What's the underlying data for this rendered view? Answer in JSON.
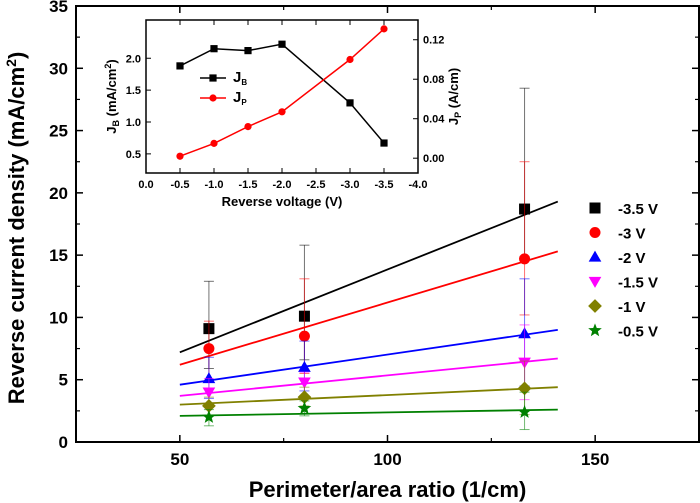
{
  "chart_data": [
    {
      "type": "scatter",
      "xlabel": "Perimeter/area ratio (1/cm)",
      "ylabel": "Reverse current density (mA/cm",
      "ylabel_sup": "2",
      "ylabel_close": ")",
      "xlim": [
        25,
        175
      ],
      "ylim": [
        0,
        35
      ],
      "xticks": [
        "50",
        "100",
        "150"
      ],
      "xtick_values": [
        50,
        100,
        150
      ],
      "yticks": [
        "0",
        "5",
        "10",
        "15",
        "20",
        "25",
        "30",
        "35"
      ],
      "ytick_values": [
        0,
        5,
        10,
        15,
        20,
        25,
        30,
        35
      ],
      "fit_x_range": [
        50,
        141
      ],
      "legend_position": "right",
      "series": [
        {
          "name": "-3.5 V",
          "color": "#000000",
          "marker": "square",
          "x": [
            57,
            80,
            133
          ],
          "y": [
            9.1,
            10.1,
            18.7
          ],
          "err_low": [
            5.9,
            6.6,
            14.9
          ],
          "err_high": [
            12.9,
            15.8,
            28.4
          ],
          "fit": [
            7.2,
            19.3
          ]
        },
        {
          "name": "-3 V",
          "color": "#ff0000",
          "marker": "circle",
          "x": [
            57,
            80,
            133
          ],
          "y": [
            7.5,
            8.5,
            14.7
          ],
          "err_low": [
            4.9,
            5.5,
            10.2
          ],
          "err_high": [
            9.7,
            13.1,
            22.5
          ],
          "fit": [
            6.2,
            15.3
          ]
        },
        {
          "name": "-2 V",
          "color": "#0000ff",
          "marker": "triangle-up",
          "x": [
            57,
            80,
            133
          ],
          "y": [
            5.1,
            6.0,
            8.7
          ],
          "err_low": [
            3.5,
            4.1,
            4.5
          ],
          "err_high": [
            6.8,
            8.1,
            13.1
          ],
          "fit": [
            4.6,
            9.0
          ]
        },
        {
          "name": "-1.5 V",
          "color": "#ff00ff",
          "marker": "triangle-down",
          "x": [
            57,
            80,
            133
          ],
          "y": [
            4.0,
            4.8,
            6.4
          ],
          "err_low": [
            2.9,
            3.5,
            3.4
          ],
          "err_high": [
            5.1,
            5.6,
            9.4
          ],
          "fit": [
            3.7,
            6.7
          ]
        },
        {
          "name": "-1 V",
          "color": "#808000",
          "marker": "diamond",
          "x": [
            57,
            80,
            133
          ],
          "y": [
            2.9,
            3.6,
            4.3
          ],
          "err_low": [
            2.1,
            2.9,
            2.2
          ],
          "err_high": [
            3.6,
            4.4,
            6.5
          ],
          "fit": [
            3.0,
            4.4
          ]
        },
        {
          "name": "-0.5 V",
          "color": "#008000",
          "marker": "star",
          "x": [
            57,
            80,
            133
          ],
          "y": [
            2.0,
            2.7,
            2.4
          ],
          "err_low": [
            1.3,
            2.1,
            1.0
          ],
          "err_high": [
            2.6,
            3.3,
            4.0
          ],
          "fit": [
            2.1,
            2.6
          ]
        }
      ]
    },
    {
      "type": "line",
      "xlabel": "Reverse voltage (V)",
      "xlim": [
        0.0,
        -4.0
      ],
      "xticks": [
        "0.0",
        "-0.5",
        "-1.0",
        "-1.5",
        "-2.0",
        "-2.5",
        "-3.0",
        "-3.5",
        "-4.0"
      ],
      "xtick_values": [
        0.0,
        -0.5,
        -1.0,
        -1.5,
        -2.0,
        -2.5,
        -3.0,
        -3.5,
        -4.0
      ],
      "ylabel_left": "J",
      "ylabel_left_sub": "B",
      "ylabel_left_unit": " (mA/cm",
      "ylabel_left_sup": "2",
      "ylabel_left_close": ")",
      "ylim_left": [
        0.2,
        2.6
      ],
      "yticks_left": [
        "0.5",
        "1.0",
        "1.5",
        "2.0"
      ],
      "ytick_values_left": [
        0.5,
        1.0,
        1.5,
        2.0
      ],
      "ylabel_right": "J",
      "ylabel_right_sub": "P",
      "ylabel_right_unit": " (A/cm)",
      "ylim_right": [
        -0.015,
        0.14
      ],
      "yticks_right": [
        "0.00",
        "0.04",
        "0.08",
        "0.12"
      ],
      "ytick_values_right": [
        0.0,
        0.04,
        0.08,
        0.12
      ],
      "legend_position": "top-left",
      "series": [
        {
          "name": "J",
          "name_sub": "B",
          "axis": "left",
          "color": "#000000",
          "marker": "square",
          "x": [
            -0.5,
            -1.0,
            -1.5,
            -2.0,
            -3.0,
            -3.5
          ],
          "y": [
            1.88,
            2.15,
            2.12,
            2.22,
            1.3,
            0.67
          ]
        },
        {
          "name": "J",
          "name_sub": "P",
          "axis": "right",
          "color": "#ff0000",
          "marker": "circle",
          "x": [
            -0.5,
            -1.0,
            -1.5,
            -2.0,
            -3.0,
            -3.5
          ],
          "y": [
            0.002,
            0.015,
            0.032,
            0.047,
            0.1,
            0.131
          ]
        }
      ]
    }
  ]
}
